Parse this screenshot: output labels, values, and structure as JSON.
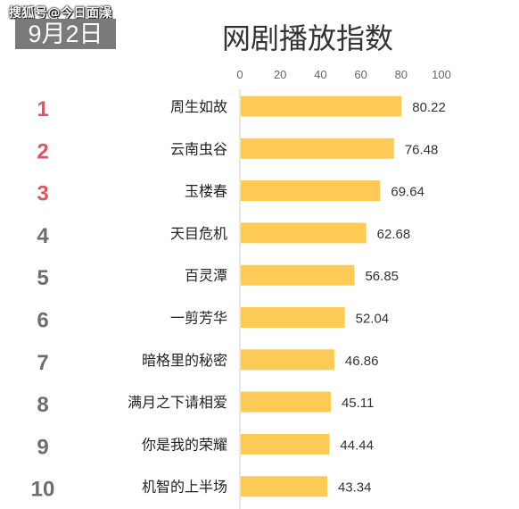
{
  "watermark": "搜狐号@今日面澡",
  "date_badge": "9月2日",
  "colors": {
    "bar": "#FDCB55",
    "rank_top": "#E0545E",
    "rank_other": "#6E6E6E",
    "axis": "#CFCFCF",
    "badge_bg": "#7A7A7A"
  },
  "chart_data": {
    "type": "bar",
    "orientation": "horizontal",
    "title": "网剧播放指数",
    "xlabel": "",
    "ylabel": "",
    "xlim": [
      0,
      100
    ],
    "x_ticks": [
      0,
      20,
      40,
      60,
      80,
      100
    ],
    "x_tick_labels": [
      "0",
      "20",
      "40",
      "60",
      "80",
      "100"
    ],
    "grid": false,
    "ranks": [
      "1",
      "2",
      "3",
      "4",
      "5",
      "6",
      "7",
      "8",
      "9",
      "10"
    ],
    "categories": [
      "周生如故",
      "云南虫谷",
      "玉楼春",
      "天目危机",
      "百灵潭",
      "一剪芳华",
      "暗格里的秘密",
      "满月之下请相爱",
      "你是我的荣耀",
      "机智的上半场"
    ],
    "values": [
      80.22,
      76.48,
      69.64,
      62.68,
      56.85,
      52.04,
      46.86,
      45.11,
      44.44,
      43.34
    ],
    "value_labels": [
      "80.22",
      "76.48",
      "69.64",
      "62.68",
      "56.85",
      "52.04",
      "46.86",
      "45.11",
      "44.44",
      "43.34"
    ]
  }
}
